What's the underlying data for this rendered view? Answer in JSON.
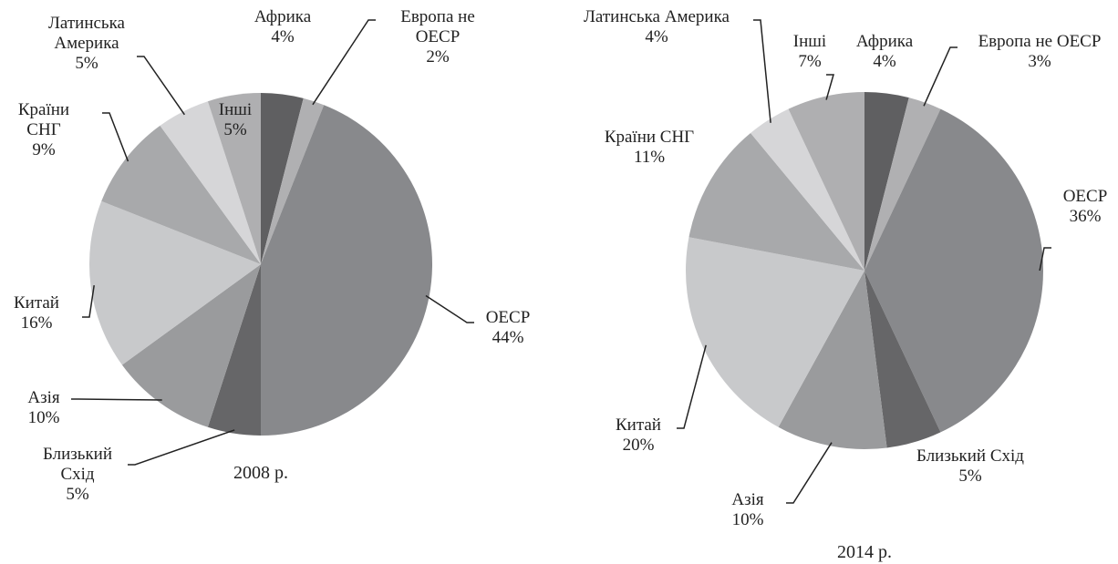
{
  "chart_data": [
    {
      "type": "pie",
      "title": "2008 р.",
      "categories": [
        "Африка",
        "Европа не ОЕСР",
        "ОЕСР",
        "Близький Схід",
        "Азія",
        "Китай",
        "Країни СНГ",
        "Латинська Америка",
        "Інші"
      ],
      "values": [
        4,
        2,
        44,
        5,
        10,
        16,
        9,
        5,
        5
      ],
      "value_labels": [
        "4%",
        "2%",
        "44%",
        "5%",
        "10%",
        "16%",
        "9%",
        "5%",
        "5%"
      ],
      "colors": [
        "#5f5f61",
        "#b0b0b2",
        "#88898c",
        "#666668",
        "#9a9b9d",
        "#c8c9cb",
        "#a8a9ab",
        "#d6d6d8",
        "#afafb1"
      ]
    },
    {
      "type": "pie",
      "title": "2014 р.",
      "categories": [
        "Африка",
        "Европа не ОЕСР",
        "ОЕСР",
        "Близький Схід",
        "Азія",
        "Китай",
        "Країни СНГ",
        "Латинська Америка",
        "Інші"
      ],
      "values": [
        4,
        3,
        36,
        5,
        10,
        20,
        11,
        4,
        7
      ],
      "value_labels": [
        "4%",
        "3%",
        "36%",
        "5%",
        "10%",
        "20%",
        "11%",
        "4%",
        "7%"
      ],
      "colors": [
        "#5f5f61",
        "#b0b0b2",
        "#88898c",
        "#666668",
        "#9a9b9d",
        "#c8c9cb",
        "#a8a9ab",
        "#d6d6d8",
        "#afafb1"
      ]
    }
  ]
}
